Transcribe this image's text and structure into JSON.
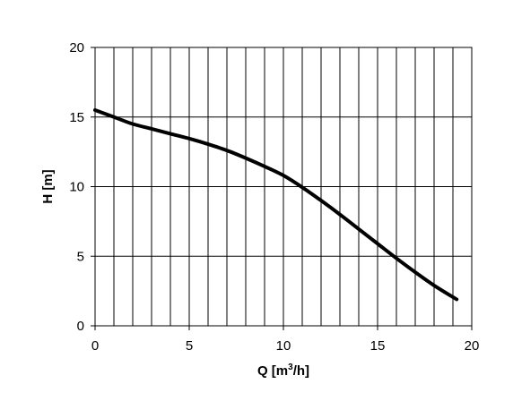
{
  "chart_data": {
    "type": "line",
    "title": "",
    "xlabel": "Q [m",
    "xlabel_sup": "3",
    "xlabel_suffix": "/h]",
    "ylabel": "H [m]",
    "xlim": [
      0,
      20
    ],
    "ylim": [
      0,
      20
    ],
    "x_ticks": [
      0,
      5,
      10,
      15,
      20
    ],
    "y_ticks": [
      0,
      5,
      10,
      15,
      20
    ],
    "x_grid_step": 1,
    "y_grid_step": 5,
    "grid": true,
    "legend": "none",
    "line_color": "#000000",
    "series": [
      {
        "x": [
          0,
          1,
          2,
          3,
          4,
          5,
          6,
          7,
          8,
          9,
          10,
          11,
          12,
          13,
          14,
          15,
          16,
          17,
          18,
          19.2
        ],
        "y": [
          15.5,
          15.0,
          14.5,
          14.15,
          13.8,
          13.45,
          13.05,
          12.6,
          12.05,
          11.45,
          10.8,
          9.95,
          9.0,
          8.0,
          6.95,
          5.9,
          4.85,
          3.85,
          2.9,
          1.9
        ]
      }
    ]
  }
}
